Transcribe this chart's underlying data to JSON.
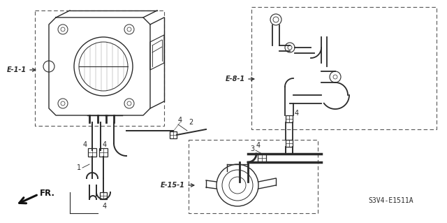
{
  "bg_color": "#ffffff",
  "line_color": "#2a2a2a",
  "part_code": "S3V4-E1511A",
  "labels": {
    "E1_1": "E-1-1",
    "E8_1": "E-8-1",
    "E15_1": "E-15-1",
    "FR": "FR.",
    "num1": "1",
    "num2": "2",
    "num3": "3",
    "num4": "4"
  },
  "figsize": [
    6.4,
    3.19
  ],
  "dpi": 100
}
